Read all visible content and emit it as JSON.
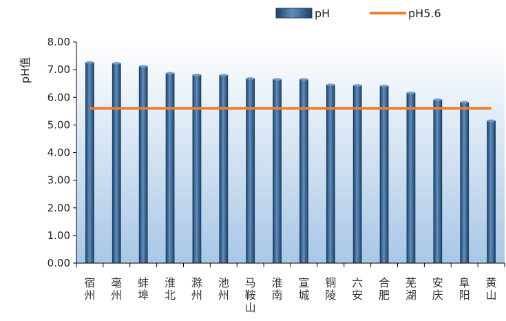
{
  "chart_data": {
    "type": "bar",
    "categories": [
      "宿州",
      "亳州",
      "蚌埠",
      "淮北",
      "滁州",
      "池州",
      "马鞍山",
      "淮南",
      "宣城",
      "铜陵",
      "六安",
      "合肥",
      "芜湖",
      "安庆",
      "阜阳",
      "黄山"
    ],
    "series": [
      {
        "name": "pH",
        "type": "bar",
        "values": [
          7.26,
          7.23,
          7.12,
          6.87,
          6.81,
          6.8,
          6.68,
          6.65,
          6.65,
          6.45,
          6.43,
          6.41,
          6.16,
          5.91,
          5.82,
          5.15
        ],
        "color": "#2f5f8f"
      },
      {
        "name": "pH5.6",
        "type": "line",
        "values": [
          5.6,
          5.6,
          5.6,
          5.6,
          5.6,
          5.6,
          5.6,
          5.6,
          5.6,
          5.6,
          5.6,
          5.6,
          5.6,
          5.6,
          5.6,
          5.6
        ],
        "color": "#ed7d31"
      }
    ],
    "ylabel": "pH值",
    "xlabel": "",
    "ylim": [
      0,
      8
    ],
    "yticks": [
      "0.00",
      "1.00",
      "2.00",
      "3.00",
      "4.00",
      "5.00",
      "6.00",
      "7.00",
      "8.00"
    ],
    "legend_position": "top-right",
    "grid": false,
    "plot_background": "gradient blue"
  }
}
